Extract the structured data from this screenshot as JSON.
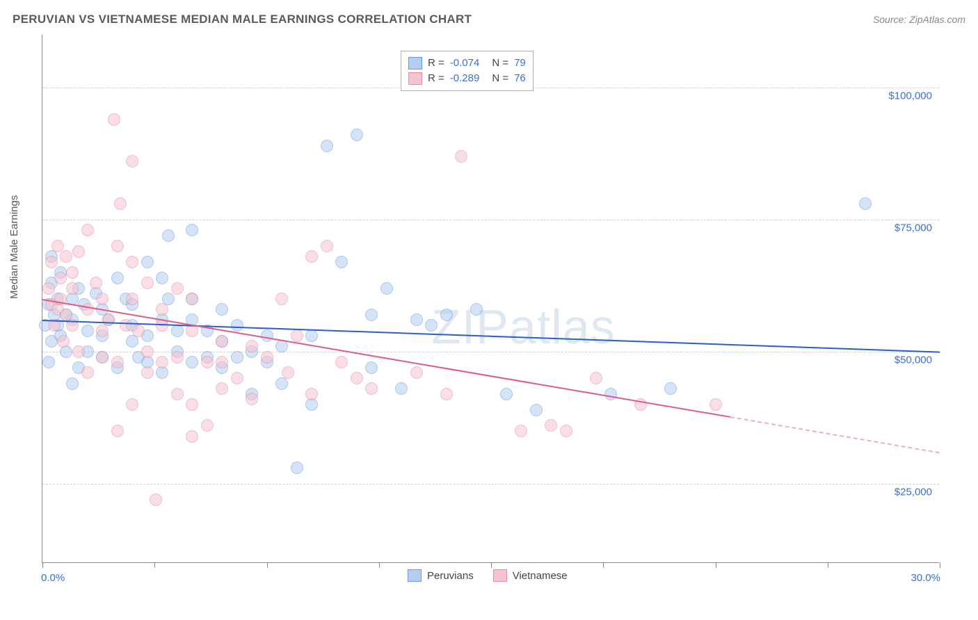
{
  "title": "PERUVIAN VS VIETNAMESE MEDIAN MALE EARNINGS CORRELATION CHART",
  "source": "Source: ZipAtlas.com",
  "watermark": "ZIPatlas",
  "chart": {
    "type": "scatter",
    "ylabel": "Median Male Earnings",
    "xlim": [
      0,
      30
    ],
    "ylim": [
      10000,
      110000
    ],
    "x_tick_positions": [
      0,
      3.75,
      7.5,
      11.25,
      15,
      18.75,
      22.5,
      26.25,
      30
    ],
    "x_tick_labels_shown": {
      "0": "0.0%",
      "30": "30.0%"
    },
    "y_gridlines": [
      25000,
      50000,
      75000,
      100000
    ],
    "y_tick_labels": {
      "25000": "$25,000",
      "50000": "$50,000",
      "75000": "$75,000",
      "100000": "$100,000"
    },
    "background_color": "#ffffff",
    "grid_color": "#d0d0d0",
    "axis_color": "#888888",
    "tick_label_color": "#3b6fd4",
    "axis_label_color": "#5a5a5a",
    "point_radius": 9,
    "point_opacity": 0.55,
    "stats_box": {
      "x_center": 15,
      "y_top": 107000,
      "rows": [
        {
          "swatch_fill": "#b3cdf0",
          "swatch_border": "#6a9ae0",
          "r": "-0.074",
          "n": "79"
        },
        {
          "swatch_fill": "#f5c4d0",
          "swatch_border": "#e58aa3",
          "r": "-0.289",
          "n": "76"
        }
      ]
    },
    "bottom_legend": {
      "x_center": 15,
      "items": [
        {
          "swatch_fill": "#b3cdf0",
          "swatch_border": "#6a9ae0",
          "label": "Peruvians"
        },
        {
          "swatch_fill": "#f5c4d0",
          "swatch_border": "#e58aa3",
          "label": "Vietnamese"
        }
      ]
    },
    "series": [
      {
        "name": "Peruvians",
        "fill": "#b3cdf0",
        "stroke": "#6a9ae0",
        "trend_color": "#2a5fc9",
        "trend": {
          "x1": 0,
          "y1": 56000,
          "x2": 30,
          "y2": 50000,
          "solid_until_x": 30
        },
        "points": [
          [
            0.1,
            55000
          ],
          [
            0.2,
            59000
          ],
          [
            0.2,
            48000
          ],
          [
            0.3,
            63000
          ],
          [
            0.3,
            52000
          ],
          [
            0.4,
            57000
          ],
          [
            0.5,
            60000
          ],
          [
            0.5,
            55000
          ],
          [
            0.6,
            53000
          ],
          [
            0.6,
            65000
          ],
          [
            0.8,
            57000
          ],
          [
            0.8,
            50000
          ],
          [
            1.0,
            60000
          ],
          [
            1.0,
            56000
          ],
          [
            1.0,
            44000
          ],
          [
            1.2,
            62000
          ],
          [
            1.2,
            47000
          ],
          [
            1.4,
            59000
          ],
          [
            1.5,
            54000
          ],
          [
            1.5,
            50000
          ],
          [
            1.8,
            61000
          ],
          [
            2.0,
            58000
          ],
          [
            2.0,
            53000
          ],
          [
            2.0,
            49000
          ],
          [
            2.2,
            56000
          ],
          [
            2.5,
            64000
          ],
          [
            2.5,
            47000
          ],
          [
            2.8,
            60000
          ],
          [
            3.0,
            55000
          ],
          [
            3.0,
            52000
          ],
          [
            3.0,
            59000
          ],
          [
            3.2,
            49000
          ],
          [
            3.5,
            67000
          ],
          [
            3.5,
            48000
          ],
          [
            3.5,
            53000
          ],
          [
            4.0,
            56000
          ],
          [
            4.0,
            46000
          ],
          [
            4.0,
            64000
          ],
          [
            4.2,
            60000
          ],
          [
            4.2,
            72000
          ],
          [
            4.5,
            54000
          ],
          [
            4.5,
            50000
          ],
          [
            5.0,
            56000
          ],
          [
            5.0,
            48000
          ],
          [
            5.0,
            60000
          ],
          [
            5.0,
            73000
          ],
          [
            5.5,
            49000
          ],
          [
            5.5,
            54000
          ],
          [
            6.0,
            47000
          ],
          [
            6.0,
            52000
          ],
          [
            6.0,
            58000
          ],
          [
            6.5,
            49000
          ],
          [
            6.5,
            55000
          ],
          [
            7.0,
            42000
          ],
          [
            7.0,
            50000
          ],
          [
            7.5,
            48000
          ],
          [
            7.5,
            53000
          ],
          [
            8.0,
            44000
          ],
          [
            8.0,
            51000
          ],
          [
            8.5,
            28000
          ],
          [
            9.0,
            40000
          ],
          [
            9.0,
            53000
          ],
          [
            9.5,
            89000
          ],
          [
            10.0,
            67000
          ],
          [
            10.5,
            91000
          ],
          [
            11.0,
            47000
          ],
          [
            11.0,
            57000
          ],
          [
            11.5,
            62000
          ],
          [
            12.0,
            43000
          ],
          [
            12.5,
            56000
          ],
          [
            13.0,
            55000
          ],
          [
            13.5,
            57000
          ],
          [
            14.5,
            58000
          ],
          [
            15.5,
            42000
          ],
          [
            16.5,
            39000
          ],
          [
            19.0,
            42000
          ],
          [
            21.0,
            43000
          ],
          [
            27.5,
            78000
          ],
          [
            0.3,
            68000
          ]
        ]
      },
      {
        "name": "Vietnamese",
        "fill": "#f5c4d0",
        "stroke": "#e58aa3",
        "trend_color": "#e05a85",
        "trend": {
          "x1": 0,
          "y1": 60000,
          "x2": 30,
          "y2": 31000,
          "solid_until_x": 23
        },
        "points": [
          [
            0.2,
            62000
          ],
          [
            0.3,
            59000
          ],
          [
            0.3,
            67000
          ],
          [
            0.4,
            55000
          ],
          [
            0.5,
            70000
          ],
          [
            0.5,
            58000
          ],
          [
            0.6,
            64000
          ],
          [
            0.6,
            60000
          ],
          [
            0.7,
            52000
          ],
          [
            0.8,
            68000
          ],
          [
            0.8,
            57000
          ],
          [
            1.0,
            62000
          ],
          [
            1.0,
            55000
          ],
          [
            1.0,
            65000
          ],
          [
            1.2,
            50000
          ],
          [
            1.2,
            69000
          ],
          [
            1.5,
            58000
          ],
          [
            1.5,
            73000
          ],
          [
            1.5,
            46000
          ],
          [
            1.8,
            63000
          ],
          [
            2.0,
            54000
          ],
          [
            2.0,
            60000
          ],
          [
            2.0,
            49000
          ],
          [
            2.2,
            56000
          ],
          [
            2.4,
            94000
          ],
          [
            2.5,
            70000
          ],
          [
            2.5,
            48000
          ],
          [
            2.5,
            35000
          ],
          [
            2.6,
            78000
          ],
          [
            2.8,
            55000
          ],
          [
            3.0,
            60000
          ],
          [
            3.0,
            86000
          ],
          [
            3.0,
            67000
          ],
          [
            3.0,
            40000
          ],
          [
            3.2,
            54000
          ],
          [
            3.5,
            46000
          ],
          [
            3.5,
            63000
          ],
          [
            3.5,
            50000
          ],
          [
            3.8,
            22000
          ],
          [
            4.0,
            55000
          ],
          [
            4.0,
            48000
          ],
          [
            4.0,
            58000
          ],
          [
            4.5,
            42000
          ],
          [
            4.5,
            62000
          ],
          [
            4.5,
            49000
          ],
          [
            5.0,
            40000
          ],
          [
            5.0,
            54000
          ],
          [
            5.0,
            60000
          ],
          [
            5.0,
            34000
          ],
          [
            5.5,
            36000
          ],
          [
            5.5,
            48000
          ],
          [
            6.0,
            43000
          ],
          [
            6.0,
            52000
          ],
          [
            6.0,
            48000
          ],
          [
            6.5,
            45000
          ],
          [
            7.0,
            51000
          ],
          [
            7.0,
            41000
          ],
          [
            7.5,
            49000
          ],
          [
            8.0,
            60000
          ],
          [
            8.2,
            46000
          ],
          [
            8.5,
            53000
          ],
          [
            9.0,
            68000
          ],
          [
            9.0,
            42000
          ],
          [
            9.5,
            70000
          ],
          [
            10.0,
            48000
          ],
          [
            10.5,
            45000
          ],
          [
            11.0,
            43000
          ],
          [
            12.5,
            46000
          ],
          [
            13.5,
            42000
          ],
          [
            14.0,
            87000
          ],
          [
            16.0,
            35000
          ],
          [
            17.0,
            36000
          ],
          [
            17.5,
            35000
          ],
          [
            18.5,
            45000
          ],
          [
            20.0,
            40000
          ],
          [
            22.5,
            40000
          ]
        ]
      }
    ]
  }
}
